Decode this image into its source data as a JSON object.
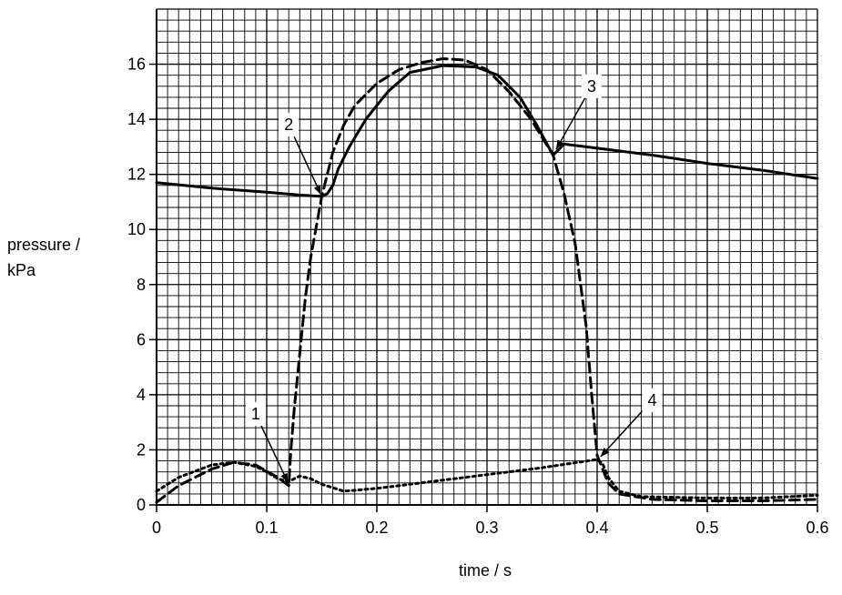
{
  "chart_data": {
    "type": "line",
    "title": "",
    "xlabel": "time / s",
    "ylabel_lines": [
      "pressure /",
      "kPa"
    ],
    "xlim": [
      0,
      0.6
    ],
    "ylim": [
      0,
      18
    ],
    "x_ticks": [
      0,
      0.1,
      0.2,
      0.3,
      0.4,
      0.5,
      0.6
    ],
    "x_tick_labels": [
      "0",
      "0.1",
      "0.2",
      "0.3",
      "0.4",
      "0.5",
      "0.6"
    ],
    "y_ticks": [
      0,
      2,
      4,
      6,
      8,
      10,
      12,
      14,
      16
    ],
    "y_tick_labels": [
      "0",
      "2",
      "4",
      "6",
      "8",
      "10",
      "12",
      "14",
      "16"
    ],
    "grid": true,
    "legend": "none",
    "series": [
      {
        "style": "solid",
        "points": [
          [
            0,
            11.7
          ],
          [
            0.05,
            11.5
          ],
          [
            0.1,
            11.35
          ],
          [
            0.13,
            11.25
          ],
          [
            0.15,
            11.2
          ],
          [
            0.155,
            11.3
          ],
          [
            0.16,
            11.6
          ],
          [
            0.165,
            12.2
          ],
          [
            0.175,
            13.0
          ],
          [
            0.19,
            14.0
          ],
          [
            0.21,
            15.0
          ],
          [
            0.23,
            15.7
          ],
          [
            0.26,
            15.95
          ],
          [
            0.29,
            15.9
          ],
          [
            0.31,
            15.6
          ],
          [
            0.33,
            14.8
          ],
          [
            0.345,
            13.8
          ],
          [
            0.36,
            12.7
          ],
          [
            0.365,
            12.9
          ],
          [
            0.37,
            13.1
          ],
          [
            0.4,
            12.95
          ],
          [
            0.45,
            12.7
          ],
          [
            0.5,
            12.4
          ],
          [
            0.55,
            12.15
          ],
          [
            0.6,
            11.85
          ]
        ]
      },
      {
        "style": "dashed",
        "points": [
          [
            0,
            0.1
          ],
          [
            0.02,
            0.7
          ],
          [
            0.05,
            1.3
          ],
          [
            0.07,
            1.55
          ],
          [
            0.09,
            1.45
          ],
          [
            0.11,
            1.0
          ],
          [
            0.12,
            0.7
          ],
          [
            0.122,
            2.0
          ],
          [
            0.125,
            3.5
          ],
          [
            0.13,
            5.5
          ],
          [
            0.135,
            7.5
          ],
          [
            0.14,
            9.0
          ],
          [
            0.15,
            11.2
          ],
          [
            0.16,
            12.8
          ],
          [
            0.17,
            13.8
          ],
          [
            0.18,
            14.5
          ],
          [
            0.2,
            15.3
          ],
          [
            0.22,
            15.8
          ],
          [
            0.24,
            16.05
          ],
          [
            0.26,
            16.2
          ],
          [
            0.28,
            16.15
          ],
          [
            0.3,
            15.8
          ],
          [
            0.32,
            15.0
          ],
          [
            0.34,
            14.0
          ],
          [
            0.36,
            12.7
          ],
          [
            0.37,
            11.3
          ],
          [
            0.38,
            9.5
          ],
          [
            0.39,
            6.5
          ],
          [
            0.395,
            4.0
          ],
          [
            0.4,
            1.8
          ],
          [
            0.41,
            0.8
          ],
          [
            0.42,
            0.4
          ],
          [
            0.45,
            0.2
          ],
          [
            0.5,
            0.15
          ],
          [
            0.55,
            0.15
          ],
          [
            0.6,
            0.2
          ]
        ]
      },
      {
        "style": "dotted",
        "points": [
          [
            0,
            0.5
          ],
          [
            0.02,
            1.0
          ],
          [
            0.05,
            1.45
          ],
          [
            0.07,
            1.55
          ],
          [
            0.09,
            1.4
          ],
          [
            0.1,
            1.2
          ],
          [
            0.11,
            0.95
          ],
          [
            0.12,
            0.85
          ],
          [
            0.13,
            1.05
          ],
          [
            0.14,
            0.95
          ],
          [
            0.15,
            0.75
          ],
          [
            0.17,
            0.5
          ],
          [
            0.2,
            0.6
          ],
          [
            0.25,
            0.85
          ],
          [
            0.3,
            1.1
          ],
          [
            0.35,
            1.35
          ],
          [
            0.4,
            1.65
          ],
          [
            0.405,
            1.5
          ],
          [
            0.41,
            1.0
          ],
          [
            0.42,
            0.5
          ],
          [
            0.44,
            0.3
          ],
          [
            0.5,
            0.25
          ],
          [
            0.55,
            0.25
          ],
          [
            0.6,
            0.35
          ]
        ]
      }
    ],
    "annotations": [
      {
        "label": "1",
        "box_at": [
          0.09,
          3.3
        ],
        "points_to": [
          0.12,
          0.75
        ]
      },
      {
        "label": "2",
        "box_at": [
          0.12,
          13.8
        ],
        "points_to": [
          0.15,
          11.2
        ]
      },
      {
        "label": "3",
        "box_at": [
          0.395,
          15.2
        ],
        "points_to": [
          0.362,
          12.85
        ]
      },
      {
        "label": "4",
        "box_at": [
          0.45,
          3.8
        ],
        "points_to": [
          0.402,
          1.7
        ]
      }
    ]
  }
}
